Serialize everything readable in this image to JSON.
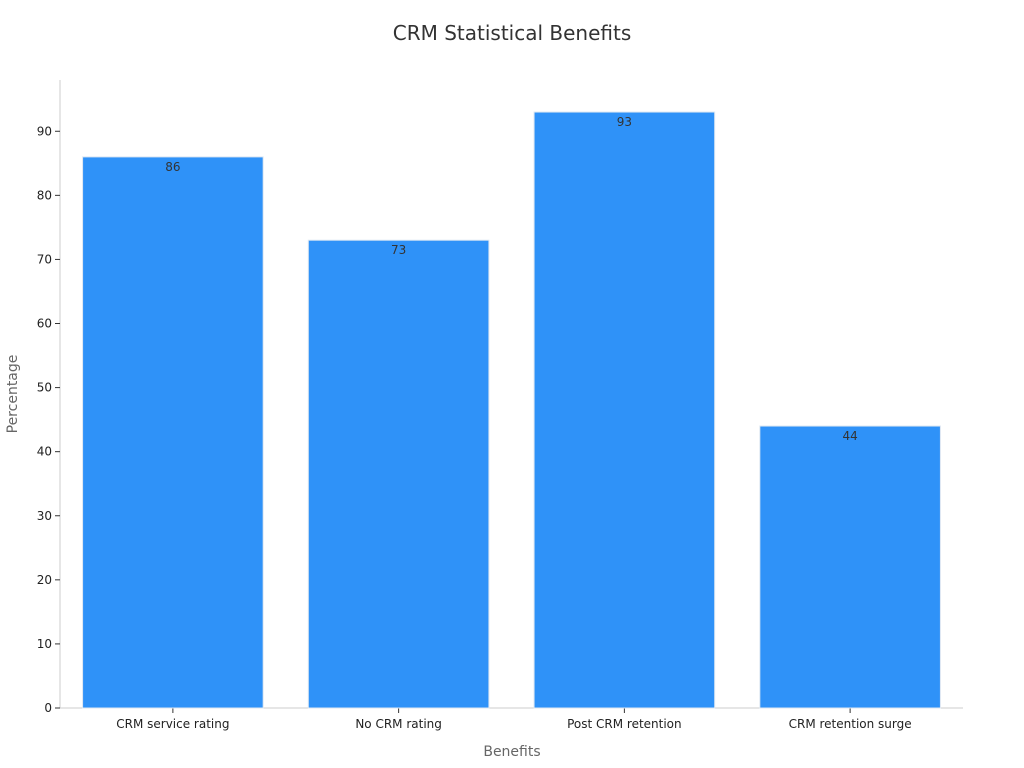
{
  "chart_data": {
    "type": "bar",
    "title": "CRM Statistical Benefits",
    "xlabel": "Benefits",
    "ylabel": "Percentage",
    "categories": [
      "CRM service rating",
      "No CRM rating",
      "Post CRM retention",
      "CRM retention surge"
    ],
    "values": [
      86,
      73,
      93,
      44
    ],
    "data_labels": [
      "86",
      "73",
      "93",
      "44"
    ],
    "ylim": [
      0,
      98
    ],
    "yticks": [
      0,
      10,
      20,
      30,
      40,
      50,
      60,
      70,
      80,
      90
    ],
    "ytick_labels": [
      "0",
      "10",
      "20",
      "30",
      "40",
      "50",
      "60",
      "70",
      "80",
      "90"
    ],
    "grid": false,
    "legend": "none",
    "colors": {
      "bar": "#2f92f8"
    }
  }
}
